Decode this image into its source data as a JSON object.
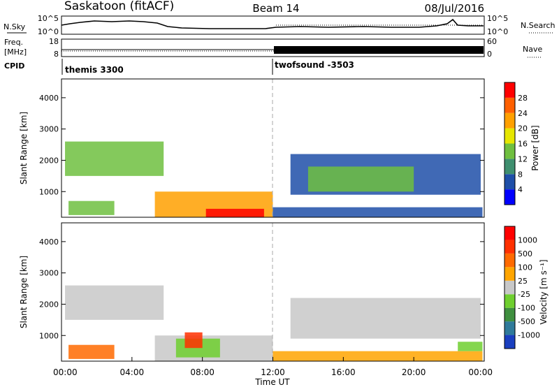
{
  "header": {
    "station": "Saskatoon (fitACF)",
    "beam": "Beam 14",
    "date": "08/Jul/2016"
  },
  "panels": {
    "nsky": {
      "label": "N.Sky",
      "left_ticks": [
        "10^5",
        "10^0"
      ],
      "right_ticks": [
        "10^5",
        "10^0"
      ],
      "right_label": "N.Search"
    },
    "freq": {
      "label_line1": "Freq.",
      "label_line2": "[MHz]",
      "left_ticks": [
        "18",
        "8"
      ],
      "right_ticks": [
        "60",
        "0"
      ],
      "right_label": "Nave"
    },
    "cpid": {
      "label": "CPID",
      "entries": [
        "themis 3300",
        "twofsound -3503"
      ]
    }
  },
  "colors": {
    "power": [
      "#0000ff",
      "#1f4fa8",
      "#3f8f6f",
      "#6fbf3f",
      "#e6e600",
      "#ffa000",
      "#ff6000",
      "#ff0000"
    ],
    "velocity": [
      "#1a3fbf",
      "#2f7a9a",
      "#3f8f3f",
      "#6fcf2f",
      "#c8c8c8",
      "#ffa500",
      "#ff6a00",
      "#ff3000",
      "#ff0000"
    ]
  },
  "chart_data": [
    {
      "type": "heatmap",
      "name": "power",
      "ylabel": "Slant Range [km]",
      "yticks": [
        "1000",
        "2000",
        "3000",
        "4000"
      ],
      "ylim": [
        180,
        4600
      ],
      "xlim": [
        0,
        24
      ],
      "colorbar_label": "Power [dB]",
      "colorbar_ticks": [
        "4",
        "8",
        "12",
        "16",
        "20",
        "24",
        "28"
      ],
      "regions": [
        {
          "x": [
            0.2,
            5.8
          ],
          "y": [
            1500,
            2600
          ],
          "level": 3
        },
        {
          "x": [
            0.4,
            3.0
          ],
          "y": [
            250,
            700
          ],
          "level": 3
        },
        {
          "x": [
            5.3,
            12.0
          ],
          "y": [
            180,
            1000
          ],
          "level": 5
        },
        {
          "x": [
            8.2,
            11.5
          ],
          "y": [
            180,
            450
          ],
          "level": 7
        },
        {
          "x": [
            12.0,
            23.9
          ],
          "y": [
            180,
            500
          ],
          "level": 1
        },
        {
          "x": [
            13.0,
            23.8
          ],
          "y": [
            900,
            2200
          ],
          "level": 1
        },
        {
          "x": [
            14.0,
            20.0
          ],
          "y": [
            1000,
            1800
          ],
          "level": 3
        }
      ]
    },
    {
      "type": "heatmap",
      "name": "velocity",
      "ylabel": "Slant Range [km]",
      "yticks": [
        "1000",
        "2000",
        "3000",
        "4000"
      ],
      "ylim": [
        180,
        4600
      ],
      "xlim": [
        0,
        24
      ],
      "xticks": [
        "00:00",
        "04:00",
        "08:00",
        "12:00",
        "16:00",
        "20:00",
        "00:00"
      ],
      "xlabel": "Time UT",
      "colorbar_label": "Velocity [m s⁻¹]",
      "colorbar_ticks": [
        "1000",
        "500",
        "100",
        "25",
        "-25",
        "-100",
        "-500",
        "-1000"
      ],
      "regions": [
        {
          "x": [
            0.2,
            5.8
          ],
          "y": [
            1500,
            2600
          ],
          "level": 4
        },
        {
          "x": [
            0.4,
            3.0
          ],
          "y": [
            250,
            700
          ],
          "level": 6
        },
        {
          "x": [
            5.3,
            12.0
          ],
          "y": [
            180,
            1000
          ],
          "level": 4
        },
        {
          "x": [
            6.5,
            9.0
          ],
          "y": [
            300,
            900
          ],
          "level": 3
        },
        {
          "x": [
            7.0,
            8.0
          ],
          "y": [
            600,
            1100
          ],
          "level": 7
        },
        {
          "x": [
            12.0,
            23.9
          ],
          "y": [
            180,
            500
          ],
          "level": 5
        },
        {
          "x": [
            13.0,
            23.8
          ],
          "y": [
            900,
            2200
          ],
          "level": 4
        },
        {
          "x": [
            22.5,
            23.9
          ],
          "y": [
            500,
            800
          ],
          "level": 3
        }
      ]
    }
  ]
}
